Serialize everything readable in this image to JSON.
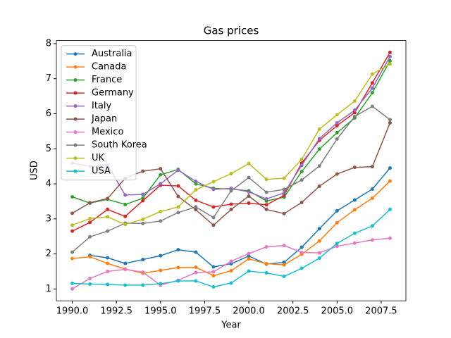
{
  "chart_data": {
    "type": "line",
    "title": "Gas prices",
    "x_label": "Year",
    "y_label": "USD",
    "x": [
      1990,
      1991,
      1992,
      1993,
      1994,
      1995,
      1996,
      1997,
      1998,
      1999,
      2000,
      2001,
      2002,
      2003,
      2004,
      2005,
      2006,
      2007,
      2008
    ],
    "series": [
      {
        "name": "Australia",
        "color": "#1f77b4",
        "values": [
          null,
          1.96,
          1.89,
          1.73,
          1.84,
          1.95,
          2.12,
          2.05,
          1.63,
          1.72,
          1.94,
          1.71,
          1.76,
          2.19,
          2.72,
          3.23,
          3.54,
          3.85,
          4.45
        ]
      },
      {
        "name": "Canada",
        "color": "#ff7f0e",
        "values": [
          1.87,
          1.92,
          1.73,
          1.57,
          1.45,
          1.53,
          1.61,
          1.62,
          1.38,
          1.52,
          1.86,
          1.72,
          1.69,
          1.99,
          2.37,
          2.89,
          3.26,
          3.59,
          4.08
        ]
      },
      {
        "name": "France",
        "color": "#2ca02c",
        "values": [
          3.63,
          3.45,
          3.56,
          3.41,
          3.59,
          4.26,
          4.41,
          4.0,
          3.87,
          3.85,
          3.8,
          3.51,
          3.62,
          4.35,
          4.99,
          5.46,
          5.88,
          6.6,
          7.51
        ]
      },
      {
        "name": "Germany",
        "color": "#d62728",
        "values": [
          2.65,
          2.9,
          3.27,
          3.07,
          3.52,
          3.96,
          3.94,
          3.53,
          3.34,
          3.42,
          3.45,
          3.4,
          3.67,
          4.59,
          5.24,
          5.66,
          6.03,
          6.88,
          7.75
        ]
      },
      {
        "name": "Italy",
        "color": "#9467bd",
        "values": [
          4.59,
          4.5,
          4.53,
          3.68,
          3.7,
          4.0,
          4.39,
          4.07,
          3.84,
          3.87,
          3.77,
          3.57,
          3.74,
          4.53,
          5.29,
          5.74,
          6.1,
          6.73,
          7.63
        ]
      },
      {
        "name": "Japan",
        "color": "#8c564b",
        "values": [
          3.16,
          3.46,
          3.58,
          4.16,
          4.36,
          4.43,
          3.64,
          3.26,
          2.82,
          3.27,
          3.65,
          3.27,
          3.15,
          3.47,
          3.93,
          4.28,
          4.47,
          4.49,
          5.74
        ]
      },
      {
        "name": "Mexico",
        "color": "#e377c2",
        "values": [
          1.0,
          1.3,
          1.5,
          1.56,
          1.48,
          1.11,
          1.25,
          1.47,
          1.49,
          1.79,
          2.01,
          2.2,
          2.24,
          2.04,
          2.03,
          2.22,
          2.31,
          2.4,
          2.45
        ]
      },
      {
        "name": "South Korea",
        "color": "#7f7f7f",
        "values": [
          2.05,
          2.49,
          2.65,
          2.88,
          2.87,
          2.94,
          3.18,
          3.34,
          3.04,
          3.8,
          4.18,
          3.76,
          3.84,
          4.11,
          4.51,
          5.28,
          5.92,
          6.21,
          5.83
        ]
      },
      {
        "name": "UK",
        "color": "#bcbd22",
        "values": [
          2.82,
          3.01,
          3.06,
          2.84,
          2.99,
          3.21,
          3.34,
          3.83,
          4.06,
          4.29,
          4.58,
          4.13,
          4.16,
          4.7,
          5.56,
          5.97,
          6.36,
          7.13,
          7.42
        ]
      },
      {
        "name": "USA",
        "color": "#17becf",
        "values": [
          1.16,
          1.14,
          1.13,
          1.11,
          1.11,
          1.15,
          1.23,
          1.23,
          1.06,
          1.17,
          1.51,
          1.46,
          1.36,
          1.59,
          1.88,
          2.3,
          2.59,
          2.8,
          3.27
        ]
      }
    ],
    "xlim": [
      1989.1,
      2008.9
    ],
    "xticks": [
      {
        "value": 1990,
        "label": "1990.0"
      },
      {
        "value": 1992.5,
        "label": "1992.5"
      },
      {
        "value": 1995,
        "label": "1995.0"
      },
      {
        "value": 1997.5,
        "label": "1997.5"
      },
      {
        "value": 2000,
        "label": "2000.0"
      },
      {
        "value": 2002.5,
        "label": "2002.5"
      },
      {
        "value": 2005,
        "label": "2005.0"
      },
      {
        "value": 2007.5,
        "label": "2007.5"
      }
    ],
    "ylim": [
      0.6625,
      8.0875
    ],
    "yticks": [
      1,
      2,
      3,
      4,
      5,
      6,
      7,
      8
    ],
    "legend": "upper left"
  }
}
